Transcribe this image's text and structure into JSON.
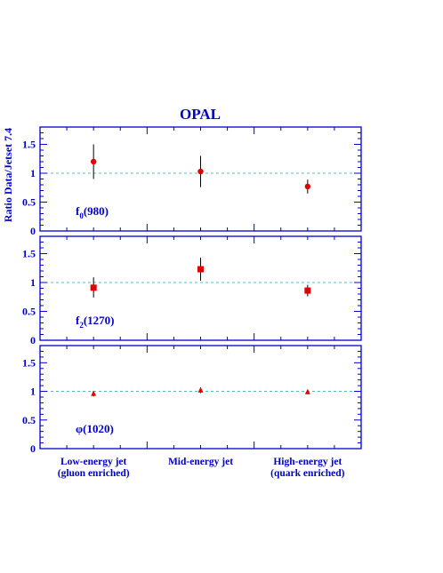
{
  "chart_data": [
    {
      "type": "scatter",
      "title": "OPAL",
      "ylabel": "Ratio Data/Jetset 7.4",
      "label": "f_0(980)",
      "label_main": "f",
      "label_sub": "0",
      "label_rest": "(980)",
      "marker": "circle",
      "ylim": [
        0,
        1.8
      ],
      "yticks": [
        "0",
        "0.5",
        "1",
        "1.5"
      ],
      "reference_line": 1,
      "points": [
        {
          "x": 1,
          "y": 1.2,
          "yerr_low": 0.3,
          "yerr_high": 0.3
        },
        {
          "x": 2,
          "y": 1.03,
          "yerr_low": 0.27,
          "yerr_high": 0.27
        },
        {
          "x": 3,
          "y": 0.77,
          "yerr_low": 0.12,
          "yerr_high": 0.12
        }
      ]
    },
    {
      "type": "scatter",
      "label": "f_2(1270)",
      "label_main": "f",
      "label_sub": "2",
      "label_rest": "(1270)",
      "marker": "square",
      "ylim": [
        0,
        1.8
      ],
      "yticks": [
        "0",
        "0.5",
        "1",
        "1.5"
      ],
      "reference_line": 1,
      "points": [
        {
          "x": 1,
          "y": 0.91,
          "yerr_low": 0.17,
          "yerr_high": 0.18
        },
        {
          "x": 2,
          "y": 1.23,
          "yerr_low": 0.2,
          "yerr_high": 0.2
        },
        {
          "x": 3,
          "y": 0.86,
          "yerr_low": 0.1,
          "yerr_high": 0.1
        }
      ]
    },
    {
      "type": "scatter",
      "label": "φ(1020)",
      "label_main": "φ(1020)",
      "label_sub": "",
      "label_rest": "",
      "marker": "triangle",
      "ylim": [
        0,
        1.8
      ],
      "yticks": [
        "0",
        "0.5",
        "1",
        "1.5"
      ],
      "reference_line": 1,
      "points": [
        {
          "x": 1,
          "y": 0.96,
          "yerr_low": 0.05,
          "yerr_high": 0.05
        },
        {
          "x": 2,
          "y": 1.02,
          "yerr_low": 0.05,
          "yerr_high": 0.05
        },
        {
          "x": 3,
          "y": 0.99,
          "yerr_low": 0.04,
          "yerr_high": 0.04
        }
      ]
    }
  ],
  "x_categories": [
    {
      "line1": "Low-energy jet",
      "line2": "(gluon enriched)"
    },
    {
      "line1": "Mid-energy jet",
      "line2": ""
    },
    {
      "line1": "High-energy jet",
      "line2": "(quark enriched)"
    }
  ],
  "colors": {
    "axis": "#0000cc",
    "text": "#0000cc",
    "marker": "#e00000",
    "error_bar": "#000000",
    "reference_line": "#33cccc"
  }
}
